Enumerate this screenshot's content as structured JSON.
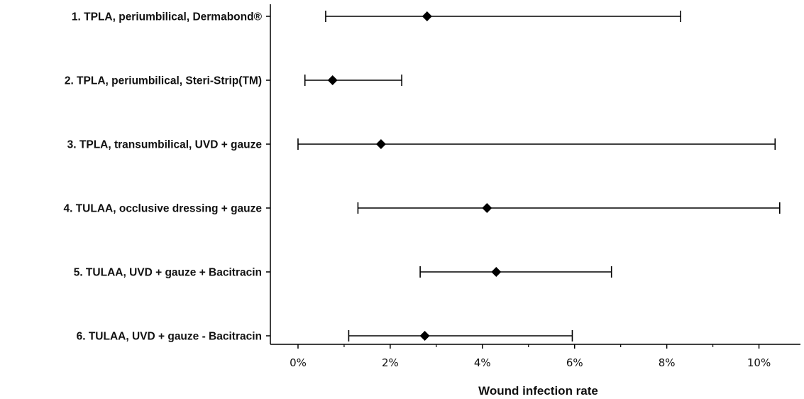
{
  "chart_data": {
    "type": "forest",
    "xlabel": "Wound infection rate",
    "x_ticks": [
      "0%",
      "2%",
      "4%",
      "6%",
      "8%",
      "10%"
    ],
    "xlim": [
      -0.6,
      10.9
    ],
    "grid": false,
    "marker": "diamond",
    "colors": {
      "marks": "#000000",
      "text": "#111111"
    },
    "rows": [
      {
        "label": "1. TPLA, periumbilical, Dermabond®",
        "estimate": 2.8,
        "lower": 0.6,
        "upper": 8.3
      },
      {
        "label": "2. TPLA, periumbilical, Steri-Strip(TM)",
        "estimate": 0.75,
        "lower": 0.15,
        "upper": 2.25
      },
      {
        "label": "3. TPLA, transumbilical, UVD + gauze",
        "estimate": 1.8,
        "lower": 0.0,
        "upper": 10.35
      },
      {
        "label": "4. TULAA, occlusive dressing + gauze",
        "estimate": 4.1,
        "lower": 1.3,
        "upper": 10.45
      },
      {
        "label": "5. TULAA, UVD + gauze + Bacitracin",
        "estimate": 4.3,
        "lower": 2.65,
        "upper": 6.8
      },
      {
        "label": "6. TULAA, UVD + gauze - Bacitracin",
        "estimate": 2.75,
        "lower": 1.1,
        "upper": 5.95
      }
    ]
  }
}
